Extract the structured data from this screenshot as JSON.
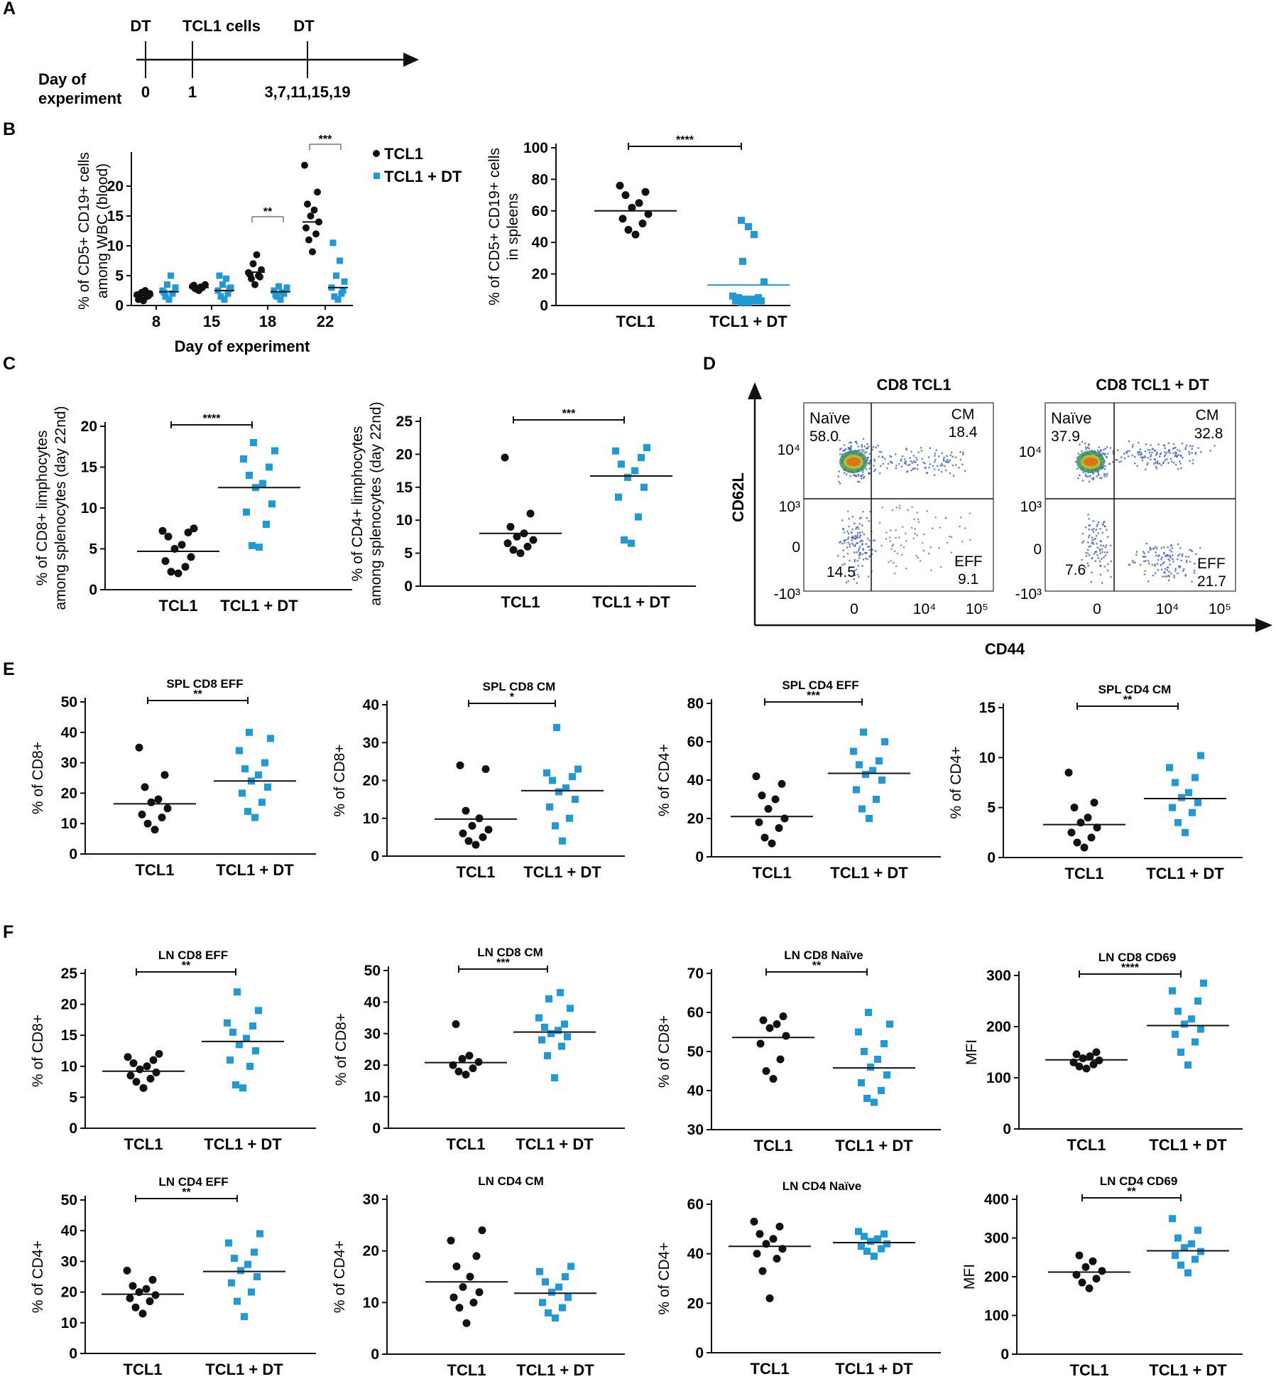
{
  "colors": {
    "tcl1": "#111111",
    "tcl1_dt": "#1f9ad6",
    "axis": "#111111"
  },
  "panel_labels": [
    "A",
    "B",
    "C",
    "D",
    "E",
    "F"
  ],
  "timeline": {
    "events": [
      {
        "label": "DT",
        "day": "0"
      },
      {
        "label": "TCL1 cells",
        "day": "1"
      },
      {
        "label": "DT",
        "day": "3,7,11,15,19"
      }
    ],
    "axis_label_line1": "Day of",
    "axis_label_line2": "experiment"
  },
  "legend": {
    "tcl1": "TCL1",
    "tcl1_dt": "TCL1 + DT"
  },
  "flow": {
    "x_axis": "CD44",
    "y_axis": "CD62L",
    "y_ticks": [
      "10⁴",
      "10³",
      "0",
      "-10³"
    ],
    "x_ticks": [
      "0",
      "10⁴",
      "10⁵"
    ],
    "plots": [
      {
        "title": "CD8 TCL1",
        "naive_label": "Naïve",
        "naive": "58.0",
        "cm_label": "CM",
        "cm": "18.4",
        "dn": "14.5",
        "eff_label": "EFF",
        "eff": "9.1"
      },
      {
        "title": "CD8 TCL1 + DT",
        "naive_label": "Naïve",
        "naive": "37.9",
        "cm_label": "CM",
        "cm": "32.8",
        "dn": "7.6",
        "eff_label": "EFF",
        "eff": "21.7"
      }
    ]
  },
  "chart_data": [
    {
      "id": "B1",
      "type": "scatter",
      "title": "",
      "xlabel": "Day of experiment",
      "ylabel": "% of CD5+ CD19+ cells among WBC (blood)",
      "categories": [
        "8",
        "15",
        "18",
        "22"
      ],
      "ylim": [
        0,
        25
      ],
      "yticks": [
        0,
        5,
        10,
        15,
        20
      ],
      "series": [
        {
          "name": "TCL1",
          "marker": "circle",
          "groups": [
            [
              0.8,
              1.2,
              1.5,
              1.8,
              2.0,
              2.2,
              2.5,
              1.0,
              1.6
            ],
            [
              2.5,
              2.8,
              3.0,
              3.2,
              3.5,
              2.7,
              3.1,
              3.4
            ],
            [
              3.5,
              4.5,
              5.0,
              5.5,
              6.0,
              7.0,
              8.5,
              5.2,
              4.8
            ],
            [
              9.0,
              11.0,
              12.0,
              13.0,
              14.0,
              15.0,
              16.0,
              17.0,
              19.0,
              23.5
            ]
          ],
          "means": [
            1.6,
            3.0,
            5.6,
            14.0
          ]
        },
        {
          "name": "TCL1 + DT",
          "marker": "square",
          "groups": [
            [
              1.0,
              1.5,
              2.0,
              2.5,
              3.0,
              3.5,
              5.0,
              2.2
            ],
            [
              1.0,
              1.5,
              2.0,
              2.5,
              3.0,
              3.5,
              4.5,
              5.0,
              2.8
            ],
            [
              1.0,
              1.5,
              2.0,
              2.5,
              3.0,
              3.2,
              2.2,
              1.8
            ],
            [
              1.0,
              1.5,
              2.0,
              3.0,
              4.0,
              5.0,
              7.5,
              10.5,
              2.5
            ]
          ],
          "means": [
            2.3,
            2.5,
            2.3,
            3.0
          ]
        }
      ],
      "annotations": [
        {
          "between_category": 2,
          "text": "**"
        },
        {
          "between_category": 3,
          "text": "***"
        }
      ]
    },
    {
      "id": "B2",
      "type": "scatter",
      "title": "",
      "ylabel": "% of CD5+ CD19+ cells in spleens",
      "categories": [
        "TCL1",
        "TCL1 + DT"
      ],
      "ylim": [
        0,
        100
      ],
      "yticks": [
        0,
        20,
        40,
        60,
        80,
        100
      ],
      "groups": [
        [
          45,
          48,
          52,
          55,
          58,
          62,
          65,
          70,
          72,
          76
        ],
        [
          2,
          2,
          3,
          3,
          3,
          4,
          4,
          5,
          5,
          6,
          15,
          28,
          45,
          50,
          54
        ]
      ],
      "means": [
        60,
        13
      ],
      "significance": "****"
    },
    {
      "id": "C1",
      "type": "scatter",
      "title": "",
      "ylabel": "% of CD8+ limphocytes among splenocytes (day 22nd)",
      "categories": [
        "TCL1",
        "TCL1 + DT"
      ],
      "ylim": [
        0,
        20
      ],
      "yticks": [
        0,
        5,
        10,
        15,
        20
      ],
      "groups": [
        [
          2.0,
          2.2,
          2.8,
          3.5,
          4.0,
          5.0,
          5.5,
          6.5,
          7.0,
          7.2,
          7.5
        ],
        [
          5.2,
          5.4,
          8.0,
          9.5,
          10.5,
          12.5,
          13.0,
          14.0,
          15.0,
          16.0,
          17.0,
          18.0
        ]
      ],
      "means": [
        4.7,
        12.5
      ],
      "significance": "****"
    },
    {
      "id": "C2",
      "type": "scatter",
      "title": "",
      "ylabel": "% of CD4+ limphocytes among splenocytes (day 22nd)",
      "categories": [
        "TCL1",
        "TCL1 + DT"
      ],
      "ylim": [
        0,
        25
      ],
      "yticks": [
        0,
        5,
        10,
        15,
        20,
        25
      ],
      "groups": [
        [
          5.0,
          5.5,
          6.0,
          6.5,
          7.0,
          7.5,
          8.0,
          9.0,
          11.0,
          19.5
        ],
        [
          6.5,
          7.0,
          10.5,
          13.5,
          15.0,
          16.5,
          17.5,
          18.5,
          19.5,
          20.5,
          21.0
        ]
      ],
      "means": [
        8.0,
        16.7
      ],
      "significance": "***"
    },
    {
      "id": "E1",
      "type": "scatter",
      "title": "SPL CD8 EFF",
      "ylabel": "% of CD8+",
      "categories": [
        "TCL1",
        "TCL1 + DT"
      ],
      "ylim": [
        0,
        50
      ],
      "yticks": [
        0,
        10,
        20,
        30,
        40,
        50
      ],
      "groups": [
        [
          8,
          10,
          12,
          13,
          15,
          17,
          18,
          22,
          26,
          35
        ],
        [
          12,
          14,
          17,
          20,
          22,
          24,
          26,
          28,
          30,
          34,
          38,
          40
        ]
      ],
      "means": [
        16.5,
        24.0
      ],
      "significance": "**"
    },
    {
      "id": "E2",
      "type": "scatter",
      "title": "SPL CD8 CM",
      "ylabel": "% of CD8+",
      "categories": [
        "TCL1",
        "TCL1 + DT"
      ],
      "ylim": [
        0,
        40
      ],
      "yticks": [
        0,
        10,
        20,
        30,
        40
      ],
      "groups": [
        [
          3,
          4,
          5,
          6,
          7,
          8,
          10,
          12,
          23,
          24
        ],
        [
          4,
          8,
          10,
          13,
          15,
          17,
          18,
          20,
          21,
          22,
          23,
          34
        ]
      ],
      "means": [
        9.8,
        17.3
      ],
      "significance": "*"
    },
    {
      "id": "E3",
      "type": "scatter",
      "title": "SPL CD4 EFF",
      "ylabel": "% of CD4+",
      "categories": [
        "TCL1",
        "TCL1 + DT"
      ],
      "ylim": [
        0,
        80
      ],
      "yticks": [
        0,
        20,
        40,
        60,
        80
      ],
      "groups": [
        [
          7,
          10,
          15,
          18,
          20,
          25,
          30,
          32,
          38,
          42
        ],
        [
          20,
          25,
          30,
          35,
          40,
          43,
          45,
          48,
          50,
          55,
          60,
          65
        ]
      ],
      "means": [
        21.0,
        43.5
      ],
      "significance": "***"
    },
    {
      "id": "E4",
      "type": "scatter",
      "title": "SPL  CD4 CM",
      "ylabel": "% of CD4+",
      "categories": [
        "TCL1",
        "TCL1 + DT"
      ],
      "ylim": [
        0,
        15
      ],
      "yticks": [
        0,
        5,
        10,
        15
      ],
      "groups": [
        [
          1.0,
          1.5,
          2.0,
          2.5,
          3.0,
          3.5,
          4.0,
          5.0,
          5.5,
          8.5
        ],
        [
          2.5,
          3.5,
          4.5,
          5.0,
          5.5,
          6.0,
          6.5,
          7.5,
          8.0,
          9.0,
          10.2
        ]
      ],
      "means": [
        3.3,
        5.9
      ],
      "significance": "**"
    },
    {
      "id": "F1",
      "type": "scatter",
      "title": "LN CD8 EFF",
      "ylabel": "% of CD8+",
      "categories": [
        "TCL1",
        "TCL1 + DT"
      ],
      "ylim": [
        0,
        25
      ],
      "yticks": [
        0,
        5,
        10,
        15,
        20,
        25
      ],
      "groups": [
        [
          6.5,
          7.5,
          8.0,
          8.5,
          9.0,
          9.5,
          10.0,
          10.5,
          11.0,
          11.5,
          12.0
        ],
        [
          6.5,
          7.0,
          10.0,
          11.0,
          12.5,
          13.5,
          14.5,
          15.5,
          16.5,
          17.0,
          19.0,
          22.0
        ]
      ],
      "means": [
        9.2,
        14.0
      ],
      "significance": "**"
    },
    {
      "id": "F2",
      "type": "scatter",
      "title": "LN CD8 CM",
      "ylabel": "% of CD8+",
      "categories": [
        "TCL1",
        "TCL1 + DT"
      ],
      "ylim": [
        0,
        50
      ],
      "yticks": [
        0,
        10,
        20,
        30,
        40,
        50
      ],
      "groups": [
        [
          17,
          18,
          19,
          20,
          21,
          22,
          23,
          33
        ],
        [
          16,
          23,
          26,
          28,
          29,
          30,
          31,
          32,
          33,
          35,
          38,
          41,
          43
        ]
      ],
      "means": [
        20.8,
        30.5
      ],
      "significance": "***"
    },
    {
      "id": "F3",
      "type": "scatter",
      "title": "LN CD8 Naïve",
      "ylabel": "% of CD8+",
      "categories": [
        "TCL1",
        "TCL1 + DT"
      ],
      "ylim": [
        30,
        70
      ],
      "yticks": [
        30,
        40,
        50,
        60,
        70
      ],
      "groups": [
        [
          43,
          45,
          48,
          52,
          54,
          56,
          57,
          58,
          59
        ],
        [
          37,
          38,
          40,
          42,
          44,
          46,
          48,
          50,
          52,
          55,
          57,
          60
        ]
      ],
      "means": [
        53.6,
        45.8
      ],
      "significance": "**"
    },
    {
      "id": "F4",
      "type": "scatter",
      "title": "LN CD8 CD69",
      "ylabel": "MFI",
      "categories": [
        "TCL1",
        "TCL1 + DT"
      ],
      "ylim": [
        0,
        300
      ],
      "yticks": [
        0,
        100,
        200,
        300
      ],
      "groups": [
        [
          118,
          122,
          126,
          130,
          134,
          138,
          142,
          146,
          150
        ],
        [
          125,
          150,
          170,
          185,
          195,
          205,
          215,
          230,
          250,
          270,
          285
        ]
      ],
      "means": [
        135,
        202
      ],
      "significance": "****"
    },
    {
      "id": "F5",
      "type": "scatter",
      "title": "LN CD4 EFF",
      "ylabel": "% of CD4+",
      "categories": [
        "TCL1",
        "TCL1 + DT"
      ],
      "ylim": [
        0,
        50
      ],
      "yticks": [
        0,
        10,
        20,
        30,
        40,
        50
      ],
      "groups": [
        [
          13,
          15,
          17,
          18,
          19,
          20,
          21,
          22,
          24,
          27
        ],
        [
          12,
          17,
          20,
          23,
          25,
          27,
          29,
          31,
          33,
          36,
          39
        ]
      ],
      "means": [
        19.3,
        26.7
      ],
      "significance": "**"
    },
    {
      "id": "F6",
      "type": "scatter",
      "title": "LN CD4 CM",
      "ylabel": "% of CD4+",
      "categories": [
        "TCL1",
        "TCL1 + DT"
      ],
      "ylim": [
        0,
        30
      ],
      "yticks": [
        0,
        10,
        20,
        30
      ],
      "groups": [
        [
          6,
          9,
          10,
          11,
          12,
          13,
          15,
          17,
          19,
          22,
          24
        ],
        [
          7,
          8,
          9,
          10,
          11,
          12,
          13,
          14,
          15,
          16,
          17
        ]
      ],
      "means": [
        14.0,
        11.8
      ],
      "significance": ""
    },
    {
      "id": "F7",
      "type": "scatter",
      "title": "LN CD4 Naïve",
      "ylabel": "% of CD4+",
      "categories": [
        "TCL1",
        "TCL1 + DT"
      ],
      "ylim": [
        0,
        60
      ],
      "yticks": [
        0,
        20,
        40,
        60
      ],
      "groups": [
        [
          22,
          33,
          38,
          40,
          42,
          44,
          46,
          48,
          51,
          53
        ],
        [
          39,
          41,
          42,
          43,
          44,
          45,
          46,
          47,
          48,
          49
        ]
      ],
      "means": [
        43,
        44.5
      ],
      "significance": ""
    },
    {
      "id": "F8",
      "type": "scatter",
      "title": "LN CD4 CD69",
      "ylabel": "MFI",
      "categories": [
        "TCL1",
        "TCL1 + DT"
      ],
      "ylim": [
        0,
        400
      ],
      "yticks": [
        0,
        100,
        200,
        300,
        400
      ],
      "groups": [
        [
          170,
          185,
          195,
          205,
          215,
          225,
          240,
          255
        ],
        [
          210,
          230,
          245,
          255,
          265,
          275,
          285,
          300,
          320,
          350
        ]
      ],
      "means": [
        212,
        267
      ],
      "significance": "**"
    }
  ]
}
